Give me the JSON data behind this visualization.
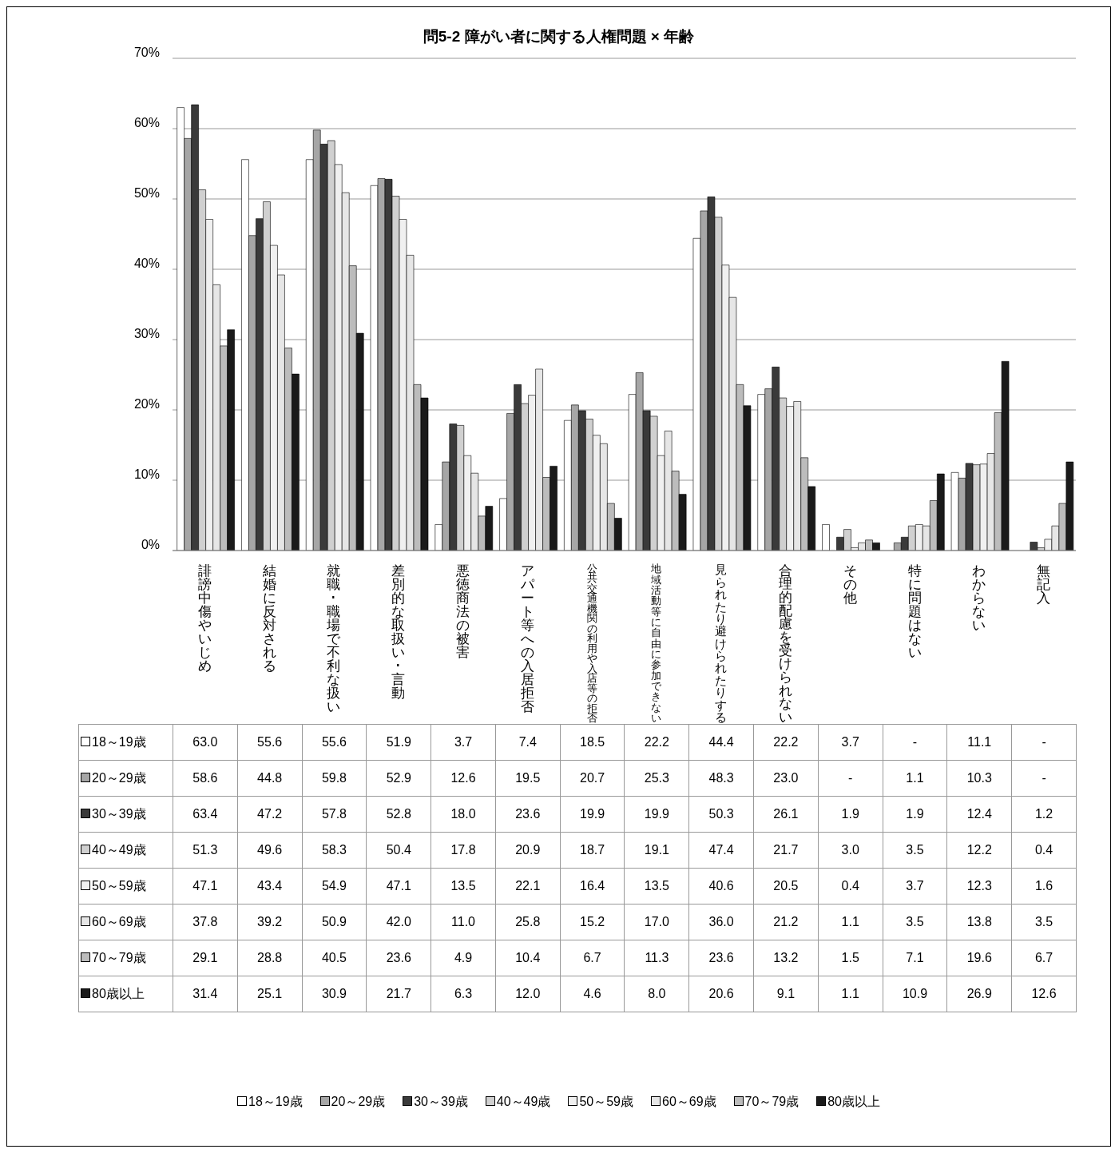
{
  "chart_data": {
    "type": "bar",
    "title": "問5-2 障がい者に関する人権問題 × 年齢",
    "categories": [
      "誹謗中傷やいじめ",
      "結婚に反対される",
      "就職･職場で不利な扱い",
      "差別的な取扱い･言動",
      "悪徳商法の被害",
      "アパート等への入居拒否",
      "公共交通機関の利用や入店等の拒否",
      "地域活動等に自由に参加できない",
      "見られたり避けられたりする",
      "合理的配慮を受けられない",
      "その他",
      "特に問題はない",
      "わからない",
      "無記入"
    ],
    "series": [
      {
        "name": "18～19歳",
        "color": "#ffffff",
        "values": [
          63.0,
          55.6,
          55.6,
          51.9,
          3.7,
          7.4,
          18.5,
          22.2,
          44.4,
          22.2,
          3.7,
          null,
          11.1,
          null
        ],
        "value_labels": [
          "63.0",
          "55.6",
          "55.6",
          "51.9",
          "3.7",
          "7.4",
          "18.5",
          "22.2",
          "44.4",
          "22.2",
          "3.7",
          "-",
          "11.1",
          "-"
        ]
      },
      {
        "name": "20～29歳",
        "color": "#a6a6a6",
        "values": [
          58.6,
          44.8,
          59.8,
          52.9,
          12.6,
          19.5,
          20.7,
          25.3,
          48.3,
          23.0,
          null,
          1.1,
          10.3,
          null
        ],
        "value_labels": [
          "58.6",
          "44.8",
          "59.8",
          "52.9",
          "12.6",
          "19.5",
          "20.7",
          "25.3",
          "48.3",
          "23.0",
          "-",
          "1.1",
          "10.3",
          "-"
        ]
      },
      {
        "name": "30～39歳",
        "color": "#3a3a3a",
        "values": [
          63.4,
          47.2,
          57.8,
          52.8,
          18.0,
          23.6,
          19.9,
          19.9,
          50.3,
          26.1,
          1.9,
          1.9,
          12.4,
          1.2
        ],
        "value_labels": [
          "63.4",
          "47.2",
          "57.8",
          "52.8",
          "18.0",
          "23.6",
          "19.9",
          "19.9",
          "50.3",
          "26.1",
          "1.9",
          "1.9",
          "12.4",
          "1.2"
        ]
      },
      {
        "name": "40～49歳",
        "color": "#d0d0d0",
        "values": [
          51.3,
          49.6,
          58.3,
          50.4,
          17.8,
          20.9,
          18.7,
          19.1,
          47.4,
          21.7,
          3.0,
          3.5,
          12.2,
          0.4
        ],
        "value_labels": [
          "51.3",
          "49.6",
          "58.3",
          "50.4",
          "17.8",
          "20.9",
          "18.7",
          "19.1",
          "47.4",
          "21.7",
          "3.0",
          "3.5",
          "12.2",
          "0.4"
        ]
      },
      {
        "name": "50～59歳",
        "color": "#f0f0f0",
        "values": [
          47.1,
          43.4,
          54.9,
          47.1,
          13.5,
          22.1,
          16.4,
          13.5,
          40.6,
          20.5,
          0.4,
          3.7,
          12.3,
          1.6
        ],
        "value_labels": [
          "47.1",
          "43.4",
          "54.9",
          "47.1",
          "13.5",
          "22.1",
          "16.4",
          "13.5",
          "40.6",
          "20.5",
          "0.4",
          "3.7",
          "12.3",
          "1.6"
        ]
      },
      {
        "name": "60～69歳",
        "color": "#e6e6e6",
        "values": [
          37.8,
          39.2,
          50.9,
          42.0,
          11.0,
          25.8,
          15.2,
          17.0,
          36.0,
          21.2,
          1.1,
          3.5,
          13.8,
          3.5
        ],
        "value_labels": [
          "37.8",
          "39.2",
          "50.9",
          "42.0",
          "11.0",
          "25.8",
          "15.2",
          "17.0",
          "36.0",
          "21.2",
          "1.1",
          "3.5",
          "13.8",
          "3.5"
        ]
      },
      {
        "name": "70～79歳",
        "color": "#bcbcbc",
        "values": [
          29.1,
          28.8,
          40.5,
          23.6,
          4.9,
          10.4,
          6.7,
          11.3,
          23.6,
          13.2,
          1.5,
          7.1,
          19.6,
          6.7
        ],
        "value_labels": [
          "29.1",
          "28.8",
          "40.5",
          "23.6",
          "4.9",
          "10.4",
          "6.7",
          "11.3",
          "23.6",
          "13.2",
          "1.5",
          "7.1",
          "19.6",
          "6.7"
        ]
      },
      {
        "name": "80歳以上",
        "color": "#1a1a1a",
        "values": [
          31.4,
          25.1,
          30.9,
          21.7,
          6.3,
          12.0,
          4.6,
          8.0,
          20.6,
          9.1,
          1.1,
          10.9,
          26.9,
          12.6
        ],
        "value_labels": [
          "31.4",
          "25.1",
          "30.9",
          "21.7",
          "6.3",
          "12.0",
          "4.6",
          "8.0",
          "20.6",
          "9.1",
          "1.1",
          "10.9",
          "26.9",
          "12.6"
        ]
      }
    ],
    "ylim": [
      0,
      70
    ],
    "yticks": [
      {
        "value": 0,
        "label": "0%"
      },
      {
        "value": 10,
        "label": "10%"
      },
      {
        "value": 20,
        "label": "20%"
      },
      {
        "value": 30,
        "label": "30%"
      },
      {
        "value": 40,
        "label": "40%"
      },
      {
        "value": 50,
        "label": "50%"
      },
      {
        "value": 60,
        "label": "60%"
      },
      {
        "value": 70,
        "label": "70%"
      }
    ],
    "grid": "y",
    "legend": "bottom"
  }
}
